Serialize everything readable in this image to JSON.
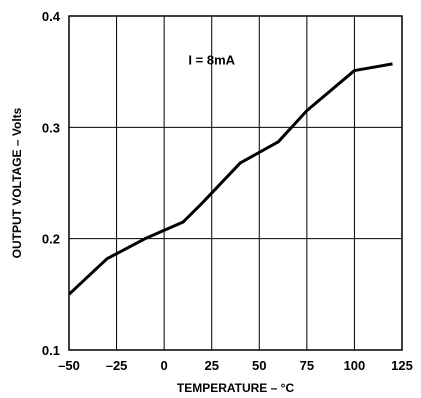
{
  "chart_data": {
    "type": "line",
    "title": "",
    "xlabel": "TEMPERATURE – °C",
    "ylabel": "OUTPUT VOLTAGE – Volts",
    "xlim": [
      -50,
      125
    ],
    "ylim": [
      0.1,
      0.4
    ],
    "x_ticks": [
      "–50",
      "–25",
      "0",
      "25",
      "50",
      "75",
      "100",
      "125"
    ],
    "x_tick_values": [
      -50,
      -25,
      0,
      25,
      50,
      75,
      100,
      125
    ],
    "y_ticks": [
      "0.1",
      "0.2",
      "0.3",
      "0.4"
    ],
    "y_tick_values": [
      0.1,
      0.2,
      0.3,
      0.4
    ],
    "grid": true,
    "annotations": [
      {
        "text": "I = 8mA",
        "x": 25,
        "y": 0.36
      }
    ],
    "series": [
      {
        "x": [
          -50,
          -30,
          -10,
          10,
          20,
          40,
          60,
          75,
          100,
          120
        ],
        "y": [
          0.15,
          0.182,
          0.2,
          0.215,
          0.232,
          0.268,
          0.287,
          0.315,
          0.351,
          0.357
        ]
      }
    ]
  }
}
